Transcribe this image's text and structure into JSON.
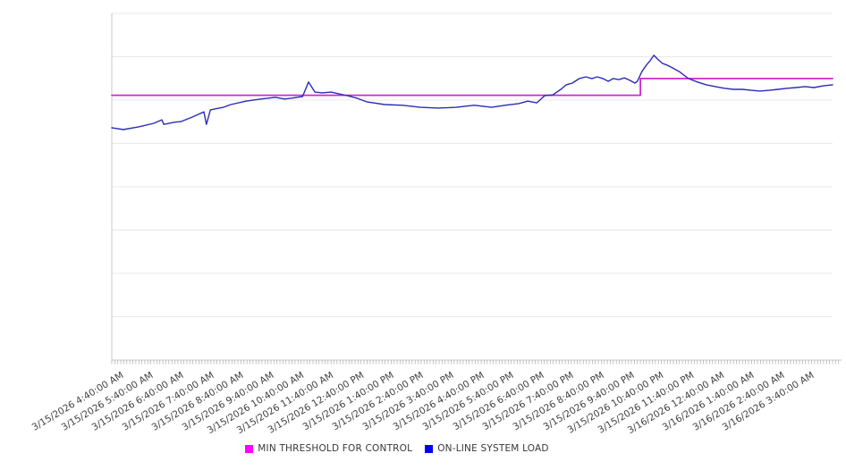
{
  "page": {
    "background": "#ffffff"
  },
  "legend": {
    "items": [
      {
        "label": "MIN THRESHOLD FOR CONTROL",
        "color": "#ff00ff"
      },
      {
        "label": "ON-LINE SYSTEM LOAD",
        "color": "#0000ff"
      }
    ]
  },
  "chart_data": {
    "type": "line",
    "title": "",
    "xlabel": "",
    "ylabel": "",
    "legend_position": "bottom-center",
    "grid": "horizontal-only",
    "x_axis": {
      "start": "3/15/2026 4:15:00 AM",
      "end": "3/16/2026 4:15:00 AM",
      "total_minutes": 1440,
      "minor_tick_interval_minutes": 6,
      "tick_labels": [
        "3/15/2026 4:40:00 AM",
        "3/15/2026 5:40:00 AM",
        "3/15/2026 6:40:00 AM",
        "3/15/2026 7:40:00 AM",
        "3/15/2026 8:40:00 AM",
        "3/15/2026 9:40:00 AM",
        "3/15/2026 10:40:00 AM",
        "3/15/2026 11:40:00 AM",
        "3/15/2026 12:40:00 PM",
        "3/15/2026 1:40:00 PM",
        "3/15/2026 2:40:00 PM",
        "3/15/2026 3:40:00 PM",
        "3/15/2026 4:40:00 PM",
        "3/15/2026 5:40:00 PM",
        "3/15/2026 6:40:00 PM",
        "3/15/2026 7:40:00 PM",
        "3/15/2026 8:40:00 PM",
        "3/15/2026 9:40:00 PM",
        "3/15/2026 10:40:00 PM",
        "3/15/2026 11:40:00 PM",
        "3/16/2026 12:40:00 AM",
        "3/16/2026 1:40:00 AM",
        "3/16/2026 2:40:00 AM",
        "3/16/2026 3:40:00 AM"
      ],
      "first_tick_minutes": 25,
      "tick_spacing_minutes": 60
    },
    "y_axis": {
      "labels_visible": false,
      "gridline_divisions": 8,
      "range_percent": [
        0,
        100
      ],
      "note": "y axis has no numeric labels; values below are percent of plot height estimated from gridlines"
    },
    "series": [
      {
        "name": "MIN THRESHOLD FOR CONTROL",
        "color": "#cc29cc",
        "width": 1.8,
        "shape": "step",
        "points": [
          [
            0,
            76.4
          ],
          [
            1056,
            76.4
          ],
          [
            1056,
            81.2
          ],
          [
            1440,
            81.2
          ]
        ]
      },
      {
        "name": "ON-LINE SYSTEM LOAD",
        "color": "#2b2bb8",
        "width": 1.4,
        "shape": "line",
        "points": [
          [
            0,
            67.0
          ],
          [
            23,
            66.5
          ],
          [
            54,
            67.3
          ],
          [
            84,
            68.3
          ],
          [
            100,
            69.3
          ],
          [
            104,
            68.0
          ],
          [
            125,
            68.6
          ],
          [
            138,
            68.8
          ],
          [
            161,
            70.1
          ],
          [
            184,
            71.6
          ],
          [
            189,
            68.0
          ],
          [
            197,
            72.2
          ],
          [
            223,
            72.9
          ],
          [
            238,
            73.7
          ],
          [
            268,
            74.7
          ],
          [
            298,
            75.3
          ],
          [
            327,
            75.8
          ],
          [
            345,
            75.3
          ],
          [
            357,
            75.5
          ],
          [
            381,
            76.0
          ],
          [
            393,
            80.2
          ],
          [
            406,
            77.3
          ],
          [
            420,
            77.1
          ],
          [
            438,
            77.3
          ],
          [
            470,
            76.3
          ],
          [
            491,
            75.5
          ],
          [
            509,
            74.5
          ],
          [
            545,
            73.7
          ],
          [
            581,
            73.5
          ],
          [
            616,
            72.9
          ],
          [
            652,
            72.7
          ],
          [
            688,
            72.9
          ],
          [
            724,
            73.5
          ],
          [
            759,
            72.9
          ],
          [
            786,
            73.5
          ],
          [
            813,
            74.0
          ],
          [
            831,
            74.7
          ],
          [
            849,
            74.2
          ],
          [
            865,
            76.3
          ],
          [
            881,
            76.5
          ],
          [
            897,
            78.1
          ],
          [
            908,
            79.4
          ],
          [
            920,
            79.9
          ],
          [
            934,
            81.2
          ],
          [
            947,
            81.7
          ],
          [
            959,
            81.2
          ],
          [
            970,
            81.7
          ],
          [
            981,
            81.2
          ],
          [
            992,
            80.4
          ],
          [
            1002,
            81.2
          ],
          [
            1013,
            80.9
          ],
          [
            1024,
            81.4
          ],
          [
            1035,
            80.7
          ],
          [
            1045,
            79.9
          ],
          [
            1050,
            80.4
          ],
          [
            1059,
            83.2
          ],
          [
            1068,
            85.1
          ],
          [
            1075,
            86.3
          ],
          [
            1083,
            87.9
          ],
          [
            1092,
            86.6
          ],
          [
            1100,
            85.6
          ],
          [
            1109,
            85.1
          ],
          [
            1120,
            84.3
          ],
          [
            1134,
            83.2
          ],
          [
            1152,
            81.2
          ],
          [
            1170,
            80.2
          ],
          [
            1188,
            79.4
          ],
          [
            1206,
            78.9
          ],
          [
            1224,
            78.4
          ],
          [
            1242,
            78.1
          ],
          [
            1260,
            78.1
          ],
          [
            1278,
            77.8
          ],
          [
            1295,
            77.6
          ],
          [
            1313,
            77.8
          ],
          [
            1331,
            78.1
          ],
          [
            1349,
            78.4
          ],
          [
            1367,
            78.6
          ],
          [
            1385,
            78.9
          ],
          [
            1403,
            78.6
          ],
          [
            1421,
            79.1
          ],
          [
            1440,
            79.4
          ]
        ]
      }
    ],
    "style": {
      "gridline_color": "#e8e8e8",
      "axis_line_color": "#c8c8c8",
      "minor_tick_color": "#aaaaaa",
      "x_label_color": "#404040"
    }
  }
}
